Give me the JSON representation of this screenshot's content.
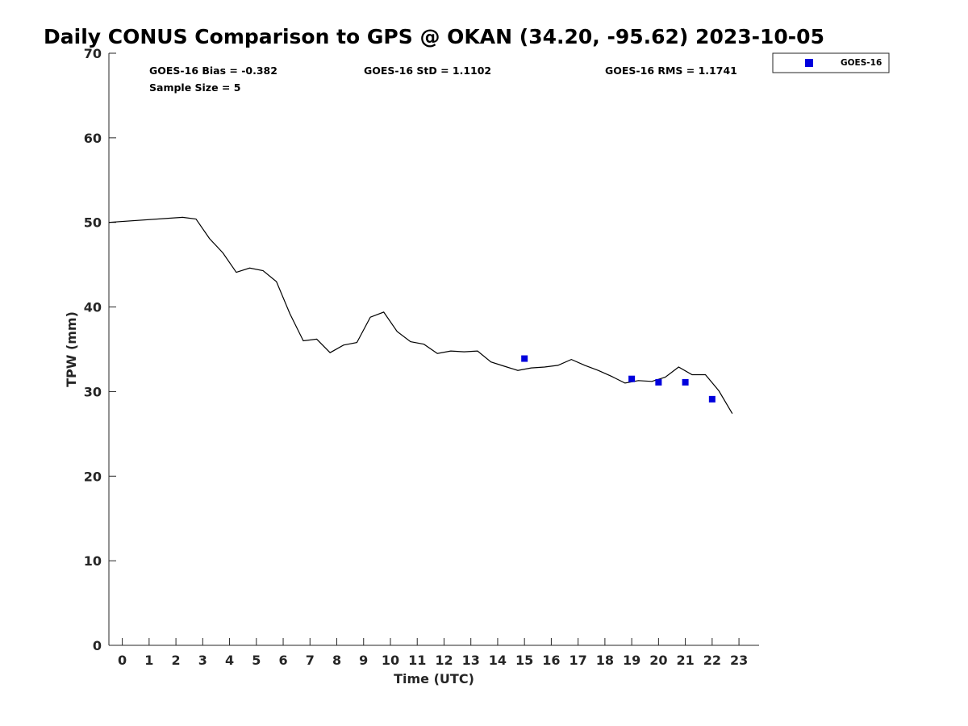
{
  "chart_data": {
    "type": "line",
    "title": "Daily CONUS Comparison to GPS @ OKAN (34.20, -95.62) 2023-10-05",
    "xlabel": "Time (UTC)",
    "ylabel": "TPW (mm)",
    "xlim": [
      -0.5,
      23.75
    ],
    "ylim": [
      0,
      70
    ],
    "x_ticks": [
      0,
      1,
      2,
      3,
      4,
      5,
      6,
      7,
      8,
      9,
      10,
      11,
      12,
      13,
      14,
      15,
      16,
      17,
      18,
      19,
      20,
      21,
      22,
      23
    ],
    "x_tick_labels": [
      "0",
      "1",
      "2",
      "3",
      "4",
      "5",
      "6",
      "7",
      "8",
      "9",
      "10",
      "11",
      "12",
      "13",
      "14",
      "15",
      "16",
      "17",
      "18",
      "19",
      "20",
      "21",
      "22",
      "23"
    ],
    "y_ticks": [
      0,
      10,
      20,
      30,
      40,
      50,
      60,
      70
    ],
    "y_tick_labels": [
      "0",
      "10",
      "20",
      "30",
      "40",
      "50",
      "60",
      "70"
    ],
    "grid": false,
    "legend_position": "outside-top-right",
    "series": [
      {
        "kind": "line",
        "color": "#000000",
        "x": [
          -0.5,
          2.25,
          2.75,
          3.25,
          3.75,
          4.25,
          4.75,
          5.25,
          5.75,
          6.25,
          6.75,
          7.25,
          7.75,
          8.25,
          8.75,
          9.25,
          9.75,
          10.25,
          10.75,
          11.25,
          11.75,
          12.25,
          12.75,
          13.25,
          13.75,
          14.25,
          14.75,
          15.25,
          15.75,
          16.25,
          16.75,
          17.25,
          17.75,
          18.25,
          18.75,
          19.25,
          19.75,
          20.25,
          20.75,
          21.25,
          21.75,
          22.25,
          22.75
        ],
        "y": [
          50.0,
          50.6,
          50.4,
          48.1,
          46.4,
          44.1,
          44.6,
          44.3,
          43.0,
          39.2,
          36.0,
          36.2,
          34.6,
          35.5,
          35.8,
          38.8,
          39.4,
          37.1,
          35.9,
          35.6,
          34.5,
          34.8,
          34.7,
          34.8,
          33.5,
          33.0,
          32.5,
          32.8,
          32.9,
          33.1,
          33.8,
          33.1,
          32.5,
          31.8,
          31.0,
          31.3,
          31.2,
          31.7,
          32.9,
          32.0,
          32.0,
          30.1,
          27.4
        ]
      },
      {
        "name": "GOES-16",
        "kind": "scatter",
        "marker": "square",
        "color": "#0000dd",
        "x": [
          15,
          19,
          20,
          21,
          22
        ],
        "y": [
          33.9,
          31.5,
          31.1,
          31.1,
          29.1
        ]
      }
    ],
    "annotations": [
      "GOES-16 Bias = -0.382",
      "GOES-16 StD = 1.1102",
      "GOES-16 RMS = 1.1741",
      "Sample Size = 5"
    ]
  }
}
